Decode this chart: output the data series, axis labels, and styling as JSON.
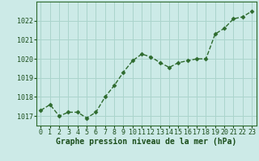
{
  "x": [
    0,
    1,
    2,
    3,
    4,
    5,
    6,
    7,
    8,
    9,
    10,
    11,
    12,
    13,
    14,
    15,
    16,
    17,
    18,
    19,
    20,
    21,
    22,
    23
  ],
  "y": [
    1017.3,
    1017.6,
    1017.0,
    1017.2,
    1017.2,
    1016.9,
    1017.2,
    1018.0,
    1018.6,
    1019.3,
    1019.9,
    1020.25,
    1020.1,
    1019.8,
    1019.55,
    1019.8,
    1019.9,
    1020.0,
    1020.0,
    1021.3,
    1021.6,
    1022.1,
    1022.2,
    1022.5
  ],
  "line_color": "#2d6a2d",
  "marker": "D",
  "marker_size": 2.5,
  "bg_color": "#cceae7",
  "grid_color": "#aad4cc",
  "xlabel": "Graphe pression niveau de la mer (hPa)",
  "xlabel_color": "#1a4d1a",
  "tick_color": "#1a4d1a",
  "ylim": [
    1016.5,
    1023.0
  ],
  "yticks": [
    1017,
    1018,
    1019,
    1020,
    1021,
    1022
  ],
  "xticks": [
    0,
    1,
    2,
    3,
    4,
    5,
    6,
    7,
    8,
    9,
    10,
    11,
    12,
    13,
    14,
    15,
    16,
    17,
    18,
    19,
    20,
    21,
    22,
    23
  ],
  "tick_fontsize": 6.0,
  "label_fontsize": 7.0,
  "linewidth": 1.0
}
